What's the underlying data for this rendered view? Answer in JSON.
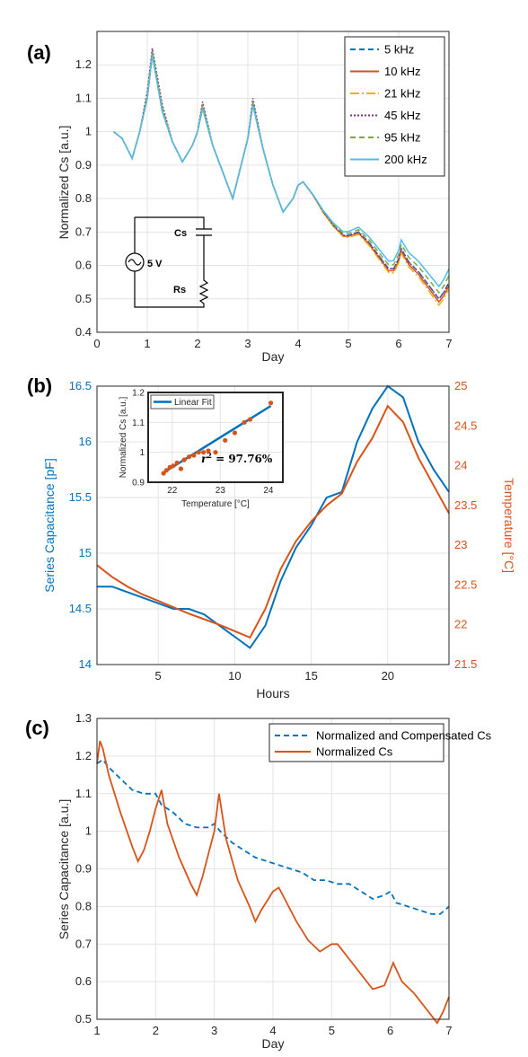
{
  "colors": {
    "blue": "#0072BD",
    "orange": "#D95319",
    "yellow": "#EDB120",
    "purple": "#7E2F8E",
    "green": "#77AC30",
    "cyan": "#4DBEEE"
  },
  "panels": {
    "a": {
      "label": "(a)"
    },
    "b": {
      "label": "(b)"
    },
    "c": {
      "label": "(c)"
    }
  },
  "circuit": {
    "cs_label": "Cs",
    "rs_label": "Rs",
    "source_label": "5 V"
  },
  "chart_data": [
    {
      "type": "line",
      "xlabel": "Day",
      "ylabel": "Normalized Cs [a.u.]",
      "xlim": [
        0,
        7
      ],
      "ylim": [
        0.4,
        1.3
      ],
      "xticks": [
        0,
        1,
        2,
        3,
        4,
        5,
        6,
        7
      ],
      "yticks": [
        0.4,
        0.5,
        0.6,
        0.7,
        0.8,
        0.9,
        1,
        1.1,
        1.2
      ],
      "grid": true,
      "legend_position": "top-right",
      "base_points": [
        [
          0.33,
          1.0
        ],
        [
          0.5,
          0.98
        ],
        [
          0.7,
          0.92
        ],
        [
          0.85,
          1.0
        ],
        [
          1.0,
          1.1
        ],
        [
          1.1,
          1.23
        ],
        [
          1.3,
          1.06
        ],
        [
          1.5,
          0.97
        ],
        [
          1.7,
          0.91
        ],
        [
          1.9,
          0.96
        ],
        [
          2.0,
          1.0
        ],
        [
          2.1,
          1.07
        ],
        [
          2.3,
          0.96
        ],
        [
          2.5,
          0.88
        ],
        [
          2.7,
          0.8
        ],
        [
          2.9,
          0.92
        ],
        [
          3.0,
          0.98
        ],
        [
          3.1,
          1.08
        ],
        [
          3.3,
          0.95
        ],
        [
          3.5,
          0.84
        ],
        [
          3.7,
          0.76
        ],
        [
          3.9,
          0.8
        ],
        [
          4.0,
          0.84
        ],
        [
          4.1,
          0.85
        ],
        [
          4.3,
          0.81
        ],
        [
          4.5,
          0.76
        ],
        [
          4.7,
          0.72
        ],
        [
          4.9,
          0.69
        ],
        [
          5.0,
          0.69
        ],
        [
          5.2,
          0.7
        ],
        [
          5.4,
          0.67
        ],
        [
          5.6,
          0.63
        ],
        [
          5.8,
          0.59
        ],
        [
          5.9,
          0.59
        ],
        [
          6.0,
          0.62
        ],
        [
          6.05,
          0.65
        ],
        [
          6.2,
          0.61
        ],
        [
          6.4,
          0.58
        ],
        [
          6.6,
          0.54
        ],
        [
          6.8,
          0.5
        ],
        [
          6.9,
          0.52
        ],
        [
          7.0,
          0.55
        ]
      ],
      "series": [
        {
          "name": "5 kHz",
          "peak_offset": 0.0,
          "tail_offset": 0.0,
          "dash": "6,4",
          "color": "#0072BD"
        },
        {
          "name": "10 kHz",
          "peak_offset": 0.0,
          "tail_offset": -0.01,
          "dash": "",
          "color": "#D95319"
        },
        {
          "name": "21 kHz",
          "peak_offset": 0.01,
          "tail_offset": -0.02,
          "dash": "10,3,2,3",
          "color": "#EDB120"
        },
        {
          "name": "45 kHz",
          "peak_offset": 0.02,
          "tail_offset": 0.0,
          "dash": "2,2",
          "color": "#7E2F8E"
        },
        {
          "name": "95 kHz",
          "peak_offset": 0.01,
          "tail_offset": 0.02,
          "dash": "6,4",
          "color": "#77AC30"
        },
        {
          "name": "200 kHz",
          "peak_offset": 0.0,
          "tail_offset": 0.04,
          "dash": "",
          "color": "#4DBEEE"
        }
      ]
    },
    {
      "type": "line",
      "xlabel": "Hours",
      "ylabel_left": "Series Capacitance [pF]",
      "ylabel_right": "Temperature [°C]",
      "xlim": [
        1,
        24
      ],
      "ylim_left": [
        14,
        16.5
      ],
      "ylim_right": [
        21.5,
        25
      ],
      "xticks": [
        5,
        10,
        15,
        20
      ],
      "yticks_left": [
        14,
        14.5,
        15,
        15.5,
        16,
        16.5
      ],
      "yticks_right": [
        21.5,
        22,
        22.5,
        23,
        23.5,
        24,
        24.5,
        25
      ],
      "grid": true,
      "series": [
        {
          "name": "Series Capacitance",
          "axis": "left",
          "color": "#0072BD",
          "x": [
            1,
            2,
            3,
            4,
            5,
            6,
            7,
            8,
            9,
            10,
            11,
            12,
            13,
            14,
            15,
            16,
            17,
            18,
            19,
            20,
            21,
            22,
            23,
            24
          ],
          "y": [
            14.7,
            14.7,
            14.65,
            14.6,
            14.55,
            14.5,
            14.5,
            14.45,
            14.35,
            14.25,
            14.15,
            14.35,
            14.75,
            15.05,
            15.25,
            15.5,
            15.55,
            16.0,
            16.3,
            16.5,
            16.4,
            16.0,
            15.75,
            15.55
          ]
        },
        {
          "name": "Temperature",
          "axis": "right",
          "color": "#D95319",
          "x": [
            1,
            2,
            3,
            4,
            5,
            6,
            7,
            8,
            9,
            10,
            11,
            12,
            13,
            14,
            15,
            16,
            17,
            18,
            19,
            20,
            21,
            22,
            23,
            24
          ],
          "y": [
            22.75,
            22.6,
            22.48,
            22.38,
            22.3,
            22.22,
            22.14,
            22.07,
            22.0,
            21.92,
            21.84,
            22.2,
            22.7,
            23.05,
            23.3,
            23.5,
            23.65,
            24.05,
            24.35,
            24.75,
            24.55,
            24.1,
            23.75,
            23.4
          ]
        }
      ],
      "inset": {
        "type": "scatter",
        "xlabel": "Temperature [°C]",
        "ylabel": "Normalized Cs [a.u.]",
        "xlim": [
          21.5,
          24.3
        ],
        "ylim": [
          0.9,
          1.2
        ],
        "xticks": [
          22,
          23,
          24
        ],
        "yticks": [
          0.9,
          1,
          1.1,
          1.2
        ],
        "legend": "Linear Fit",
        "annotation_var": "r",
        "annotation_exp": "2",
        "annotation_value": " = 97.76%",
        "fit_line": [
          [
            21.8,
            0.93
          ],
          [
            24.05,
            1.155
          ]
        ],
        "points": [
          [
            21.82,
            0.93
          ],
          [
            21.88,
            0.94
          ],
          [
            21.95,
            0.95
          ],
          [
            22.02,
            0.955
          ],
          [
            22.1,
            0.965
          ],
          [
            22.18,
            0.945
          ],
          [
            22.25,
            0.975
          ],
          [
            22.35,
            0.985
          ],
          [
            22.45,
            0.99
          ],
          [
            22.55,
            1.0
          ],
          [
            22.65,
            1.0
          ],
          [
            22.75,
            1.005
          ],
          [
            22.9,
            1.0
          ],
          [
            23.1,
            1.04
          ],
          [
            23.3,
            1.065
          ],
          [
            23.5,
            1.1
          ],
          [
            23.62,
            1.11
          ],
          [
            24.05,
            1.165
          ]
        ]
      }
    },
    {
      "type": "line",
      "xlabel": "Day",
      "ylabel": "Series Capacitance [a.u.]",
      "xlim": [
        1,
        7
      ],
      "ylim": [
        0.5,
        1.3
      ],
      "xticks": [
        1,
        2,
        3,
        4,
        5,
        6,
        7
      ],
      "yticks": [
        0.5,
        0.6,
        0.7,
        0.8,
        0.9,
        1,
        1.1,
        1.2,
        1.3
      ],
      "grid": true,
      "legend_position": "top-right",
      "series": [
        {
          "name": "Normalized and Compensated Cs",
          "dash": "6,4",
          "color": "#0072BD",
          "points": [
            [
              1.0,
              1.18
            ],
            [
              1.1,
              1.19
            ],
            [
              1.2,
              1.17
            ],
            [
              1.4,
              1.14
            ],
            [
              1.6,
              1.11
            ],
            [
              1.8,
              1.1
            ],
            [
              2.0,
              1.1
            ],
            [
              2.1,
              1.07
            ],
            [
              2.3,
              1.05
            ],
            [
              2.5,
              1.02
            ],
            [
              2.7,
              1.01
            ],
            [
              2.9,
              1.01
            ],
            [
              3.0,
              1.02
            ],
            [
              3.1,
              1.0
            ],
            [
              3.3,
              0.97
            ],
            [
              3.5,
              0.95
            ],
            [
              3.7,
              0.93
            ],
            [
              3.9,
              0.92
            ],
            [
              4.1,
              0.91
            ],
            [
              4.3,
              0.9
            ],
            [
              4.5,
              0.89
            ],
            [
              4.7,
              0.87
            ],
            [
              4.9,
              0.87
            ],
            [
              5.1,
              0.86
            ],
            [
              5.3,
              0.86
            ],
            [
              5.5,
              0.84
            ],
            [
              5.7,
              0.82
            ],
            [
              5.9,
              0.83
            ],
            [
              6.0,
              0.84
            ],
            [
              6.1,
              0.81
            ],
            [
              6.3,
              0.8
            ],
            [
              6.5,
              0.79
            ],
            [
              6.7,
              0.78
            ],
            [
              6.85,
              0.78
            ],
            [
              7.0,
              0.8
            ]
          ]
        },
        {
          "name": "Normalized Cs",
          "dash": "",
          "color": "#D95319",
          "points": [
            [
              1.0,
              1.18
            ],
            [
              1.05,
              1.24
            ],
            [
              1.1,
              1.22
            ],
            [
              1.2,
              1.15
            ],
            [
              1.4,
              1.05
            ],
            [
              1.6,
              0.96
            ],
            [
              1.7,
              0.92
            ],
            [
              1.8,
              0.95
            ],
            [
              1.9,
              1.0
            ],
            [
              2.0,
              1.06
            ],
            [
              2.1,
              1.11
            ],
            [
              2.2,
              1.02
            ],
            [
              2.4,
              0.93
            ],
            [
              2.6,
              0.86
            ],
            [
              2.7,
              0.83
            ],
            [
              2.8,
              0.88
            ],
            [
              2.9,
              0.94
            ],
            [
              3.0,
              1.0
            ],
            [
              3.08,
              1.1
            ],
            [
              3.2,
              0.98
            ],
            [
              3.4,
              0.87
            ],
            [
              3.6,
              0.8
            ],
            [
              3.7,
              0.76
            ],
            [
              3.8,
              0.79
            ],
            [
              4.0,
              0.84
            ],
            [
              4.1,
              0.85
            ],
            [
              4.2,
              0.82
            ],
            [
              4.4,
              0.76
            ],
            [
              4.6,
              0.71
            ],
            [
              4.8,
              0.68
            ],
            [
              5.0,
              0.7
            ],
            [
              5.1,
              0.7
            ],
            [
              5.3,
              0.66
            ],
            [
              5.5,
              0.62
            ],
            [
              5.7,
              0.58
            ],
            [
              5.9,
              0.59
            ],
            [
              6.0,
              0.63
            ],
            [
              6.05,
              0.65
            ],
            [
              6.2,
              0.6
            ],
            [
              6.4,
              0.57
            ],
            [
              6.6,
              0.53
            ],
            [
              6.8,
              0.49
            ],
            [
              6.9,
              0.52
            ],
            [
              7.0,
              0.56
            ]
          ]
        }
      ]
    }
  ]
}
